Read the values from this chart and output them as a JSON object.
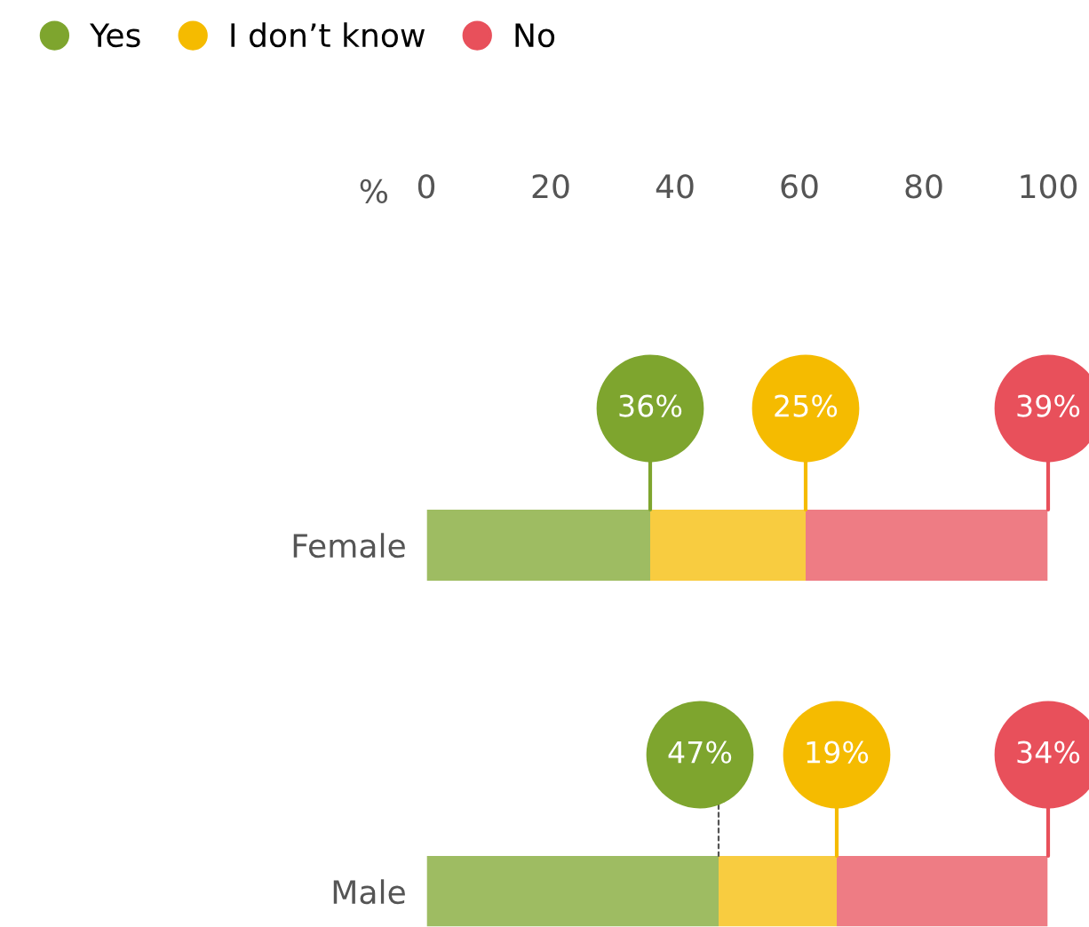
{
  "chart_data": {
    "type": "bar",
    "orientation": "horizontal",
    "stacked": true,
    "xlabel": "%",
    "categories": [
      "Female",
      "Male"
    ],
    "xlim": [
      0,
      100
    ],
    "xticks": [
      0,
      20,
      40,
      60,
      80,
      100
    ],
    "grid": false,
    "legend": "top left",
    "series": [
      {
        "name": "Yes",
        "color": "#7ea52e",
        "values": [
          36,
          47
        ]
      },
      {
        "name": "I don’t know",
        "color": "#f5bb00",
        "values": [
          25,
          19
        ]
      },
      {
        "name": "No",
        "color": "#e8505b",
        "values": [
          39,
          34
        ]
      }
    ],
    "annotations": [
      "36%",
      "25%",
      "39%",
      "47%",
      "19%",
      "34%"
    ]
  }
}
